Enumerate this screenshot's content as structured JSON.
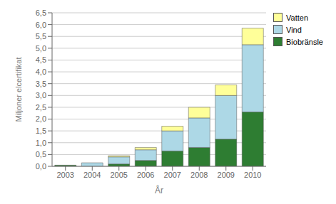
{
  "chart_data": {
    "type": "bar",
    "stacked": true,
    "xlabel": "År",
    "ylabel": "Miljoner elcertifikat",
    "categories": [
      "2003",
      "2004",
      "2005",
      "2006",
      "2007",
      "2008",
      "2009",
      "2010"
    ],
    "series": [
      {
        "name": "Biobränsle",
        "color": "#2e7d32",
        "values": [
          0.05,
          0.0,
          0.1,
          0.25,
          0.65,
          0.8,
          1.15,
          2.3
        ]
      },
      {
        "name": "Vind",
        "color": "#add8e6",
        "values": [
          0.0,
          0.15,
          0.3,
          0.45,
          0.85,
          1.25,
          1.85,
          2.85
        ]
      },
      {
        "name": "Vatten",
        "color": "#ffff99",
        "values": [
          0.0,
          0.0,
          0.05,
          0.1,
          0.2,
          0.45,
          0.45,
          0.7
        ]
      }
    ],
    "ylim": [
      0,
      6.5
    ],
    "yticks": [
      {
        "value": 0.0,
        "label": "0,0"
      },
      {
        "value": 0.5,
        "label": "0,5"
      },
      {
        "value": 1.0,
        "label": "1,0"
      },
      {
        "value": 1.5,
        "label": "1,5"
      },
      {
        "value": 2.0,
        "label": "2,0"
      },
      {
        "value": 2.5,
        "label": "2,5"
      },
      {
        "value": 3.0,
        "label": "3,0"
      },
      {
        "value": 3.5,
        "label": "3,5"
      },
      {
        "value": 4.0,
        "label": "4,0"
      },
      {
        "value": 4.5,
        "label": "4,5"
      },
      {
        "value": 5.0,
        "label": "5,0"
      },
      {
        "value": 5.5,
        "label": "5,5"
      },
      {
        "value": 6.0,
        "label": "6,0"
      },
      {
        "value": 6.5,
        "label": "6,5"
      }
    ],
    "grid": true,
    "legend": "upper right"
  }
}
